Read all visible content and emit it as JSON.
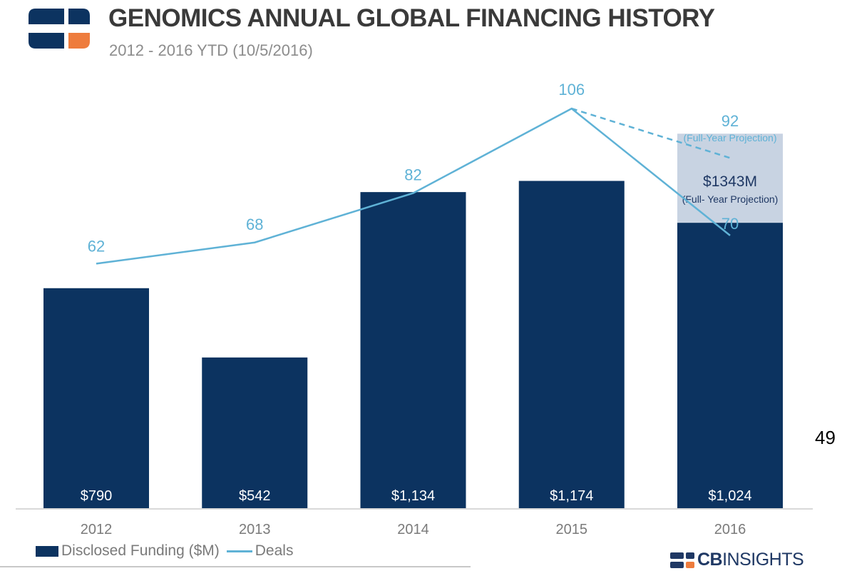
{
  "header": {
    "title": "GENOMICS ANNUAL GLOBAL FINANCING HISTORY",
    "subtitle": "2012 - 2016 YTD (10/5/2016)"
  },
  "page_number": "49",
  "brand": {
    "bold": "CB",
    "light": "INSIGHTS"
  },
  "colors": {
    "bar": "#0c3360",
    "line": "#5fb2d6",
    "projection_box": "#c8d3e2",
    "text_gray": "#7a7a7a",
    "logo_orange": "#ee7c3d"
  },
  "chart_data": {
    "type": "bar",
    "title": "GENOMICS ANNUAL GLOBAL FINANCING HISTORY",
    "subtitle": "2012 - 2016 YTD (10/5/2016)",
    "categories": [
      "2012",
      "2013",
      "2014",
      "2015",
      "2016"
    ],
    "series": [
      {
        "name": "Disclosed Funding ($M)",
        "type": "bar",
        "values": [
          790,
          542,
          1134,
          1174,
          1024
        ],
        "labels": [
          "$790",
          "$542",
          "$1,134",
          "$1,174",
          "$1,024"
        ]
      },
      {
        "name": "Deals",
        "type": "line",
        "values": [
          62,
          68,
          82,
          106,
          70
        ],
        "labels": [
          "62",
          "68",
          "82",
          "106",
          "70"
        ]
      }
    ],
    "projections": {
      "funding": {
        "category": "2016",
        "value": 1343,
        "label": "$1343M",
        "note": "(Full- Year Projection)"
      },
      "deals": {
        "category": "2016",
        "value": 92,
        "label": "92",
        "note": "(Full-Year Projection)"
      }
    },
    "funding_range": [
      0,
      1400
    ],
    "deals_range": [
      0,
      120
    ],
    "legend": "bottom-left",
    "grid": false
  }
}
